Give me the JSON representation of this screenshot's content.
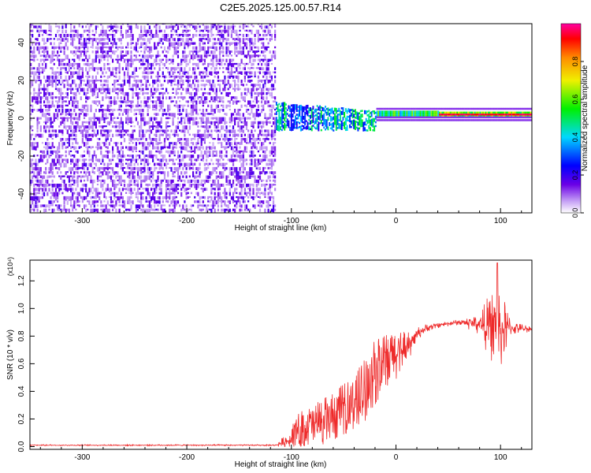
{
  "title": "C2E5.2025.125.00.57.R14",
  "colors": {
    "line": "#ee2a2a",
    "spectrogram_low": "#c8a6f2",
    "spectrogram_mid": "#7a22e0"
  },
  "chart_data": [
    {
      "type": "heatmap",
      "title": "C2E5.2025.125.00.57.R14",
      "xlabel": "Height of straight line (km)",
      "ylabel": "Frequency (Hz)",
      "xlim": [
        -350,
        130
      ],
      "ylim": [
        -50,
        50
      ],
      "xticks": [
        -300,
        -200,
        -100,
        0,
        100
      ],
      "yticks": [
        -40,
        -20,
        0,
        20,
        40
      ],
      "colorbar": {
        "label": "Normalized spectral amplitude",
        "range": [
          0,
          1
        ],
        "ticks": [
          "0.0",
          "0.2",
          "0.4",
          "0.6",
          "0.8"
        ],
        "colormap": "rainbow (violet → blue → cyan → green → yellow → red → magenta)"
      },
      "regions": [
        {
          "x_range": [
            -350,
            -115
          ],
          "freq_range": [
            -50,
            50
          ],
          "amplitude": 0.05,
          "description": "broadband noise"
        },
        {
          "x_range": [
            -115,
            -20
          ],
          "freq_range": [
            -8,
            10
          ],
          "amplitude": 0.35,
          "description": "scattered signal"
        },
        {
          "x_range": [
            -20,
            40
          ],
          "freq_range": [
            0,
            4
          ],
          "amplitude": 0.5
        },
        {
          "x_range": [
            40,
            130
          ],
          "freq_range": [
            0,
            4
          ],
          "amplitude": 0.95,
          "description": "strong narrow carrier near 1-2 Hz"
        }
      ]
    },
    {
      "type": "line",
      "xlabel": "Height of straight line (km)",
      "ylabel": "SNR (10 * v/v)",
      "y_multiplier": "(x10⁴)",
      "xlim": [
        -350,
        130
      ],
      "ylim": [
        -0.02,
        1.35
      ],
      "xticks": [
        -300,
        -200,
        -100,
        0,
        100
      ],
      "yticks": [
        0.0,
        0.2,
        0.4,
        0.6,
        0.8,
        1.0,
        1.2
      ],
      "series": [
        {
          "envelope_x": [
            -350,
            -115,
            -100,
            -90,
            -80,
            -70,
            -60,
            -50,
            -40,
            -30,
            -20,
            -10,
            0,
            10,
            20,
            30,
            40,
            60,
            80,
            90,
            100,
            110,
            130
          ],
          "envelope_base": [
            0.01,
            0.01,
            0.05,
            0.08,
            0.1,
            0.12,
            0.15,
            0.2,
            0.25,
            0.33,
            0.45,
            0.52,
            0.6,
            0.7,
            0.82,
            0.86,
            0.88,
            0.9,
            0.89,
            0.87,
            0.85,
            0.86,
            0.85
          ],
          "envelope_spread": [
            0.005,
            0.005,
            0.08,
            0.15,
            0.15,
            0.18,
            0.18,
            0.2,
            0.2,
            0.25,
            0.25,
            0.22,
            0.2,
            0.12,
            0.05,
            0.03,
            0.02,
            0.02,
            0.08,
            0.25,
            0.3,
            0.05,
            0.02
          ],
          "max_peak": {
            "x": 97,
            "y": 1.33
          }
        }
      ]
    }
  ]
}
